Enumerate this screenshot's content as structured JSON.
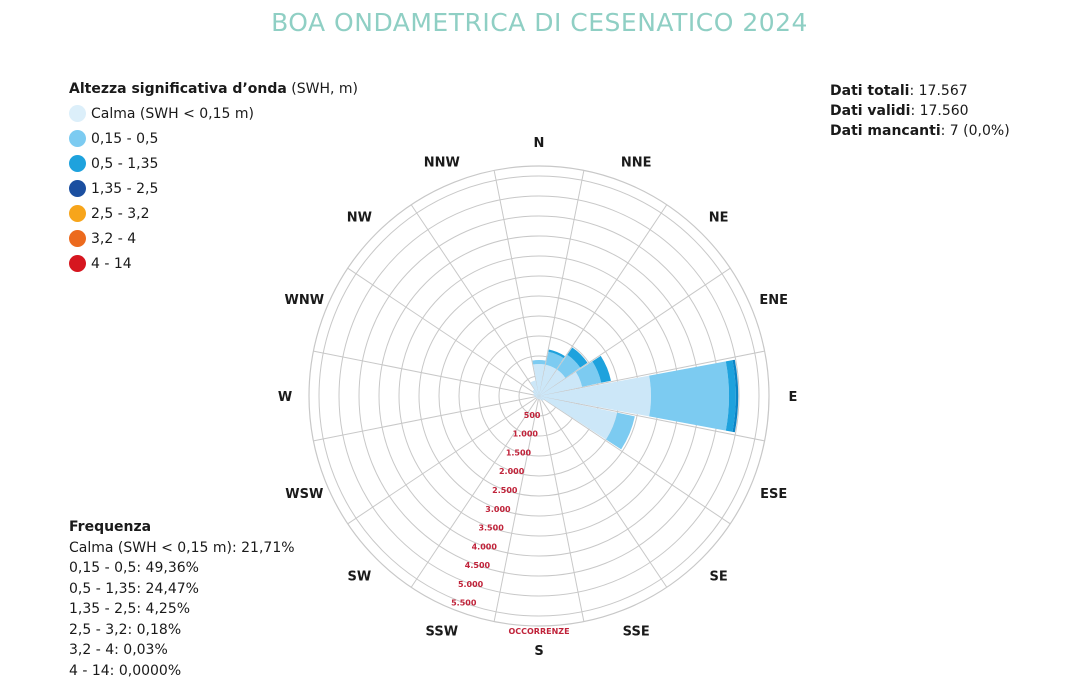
{
  "chart_data": {
    "type": "polar-bar",
    "title": "BOA ONDAMETRICA DI CESENATICO 2024",
    "directions": [
      "N",
      "NNE",
      "NE",
      "ENE",
      "E",
      "ESE",
      "SE",
      "SSE",
      "S",
      "SSW",
      "SW",
      "WSW",
      "W",
      "WNW",
      "NW",
      "NNW"
    ],
    "radial_ticks": [
      "500",
      "1.000",
      "1.500",
      "2.000",
      "2.500",
      "3.000",
      "3.500",
      "4.000",
      "4.500",
      "5.000",
      "5.500"
    ],
    "radial_tick_values": [
      500,
      1000,
      1500,
      2000,
      2500,
      3000,
      3500,
      4000,
      4500,
      5000,
      5500
    ],
    "radial_max": 5750,
    "radial_axis_label": "OCCORRENZE",
    "series": [
      {
        "name": "Calma (SWH < 0,15 m)",
        "color": "#dceffa",
        "values": [
          0,
          0,
          0,
          0,
          0,
          0,
          0,
          0,
          0,
          0,
          0,
          0,
          0,
          0,
          0,
          0
        ]
      },
      {
        "name": "0,15 - 0,5",
        "color": "#cce7f8",
        "values": [
          800,
          800,
          800,
          1100,
          2800,
          2000,
          150,
          100,
          80,
          80,
          80,
          80,
          120,
          150,
          200,
          400
        ]
      },
      {
        "name": "0,5 - 1,35",
        "color": "#7ccbf1",
        "values": [
          100,
          330,
          450,
          490,
          1950,
          450,
          0,
          0,
          0,
          0,
          0,
          0,
          0,
          0,
          0,
          0
        ]
      },
      {
        "name": "1,35 - 2,5",
        "color": "#1ea2dd",
        "values": [
          0,
          60,
          220,
          250,
          170,
          0,
          0,
          0,
          0,
          0,
          0,
          0,
          0,
          0,
          0,
          0
        ]
      },
      {
        "name": "2,5 - 3,2",
        "color": "#0a84c6",
        "values": [
          0,
          0,
          0,
          0,
          60,
          0,
          0,
          0,
          0,
          0,
          0,
          0,
          0,
          0,
          0,
          0
        ]
      }
    ]
  },
  "legend": {
    "title_bold": "Altezza significativa d’onda",
    "title_rest": " (SWH, m)",
    "items": [
      {
        "label": "Calma (SWH < 0,15 m)",
        "color": "#dceffa"
      },
      {
        "label": "0,15 - 0,5",
        "color": "#7ccbf1"
      },
      {
        "label": "0,5 - 1,35",
        "color": "#1ea2dd"
      },
      {
        "label": "1,35 - 2,5",
        "color": "#1b4fa0"
      },
      {
        "label": "2,5 - 3,2",
        "color": "#f7a51b"
      },
      {
        "label": "3,2 - 4",
        "color": "#ec6a1e"
      },
      {
        "label": "4 - 14",
        "color": "#d6161f"
      }
    ]
  },
  "totals": {
    "total_label": "Dati totali",
    "total_value": ": 17.567",
    "valid_label": "Dati validi",
    "valid_value": ": 17.560",
    "missing_label": "Dati mancanti",
    "missing_value": ": 7 (0,0%)"
  },
  "frequency": {
    "title": "Frequenza",
    "lines": [
      "Calma (SWH < 0,15 m): 21,71%",
      "0,15 - 0,5: 49,36%",
      "0,5 - 1,35: 24,47%",
      "1,35 - 2,5: 4,25%",
      "2,5 - 3,2: 0,18%",
      "3,2 - 4: 0,03%",
      "4 - 14: 0,0000%"
    ]
  },
  "colors": {
    "title": "#8fcfc4",
    "grid": "#c8c8c8",
    "tick_labels": "#c0233a"
  }
}
